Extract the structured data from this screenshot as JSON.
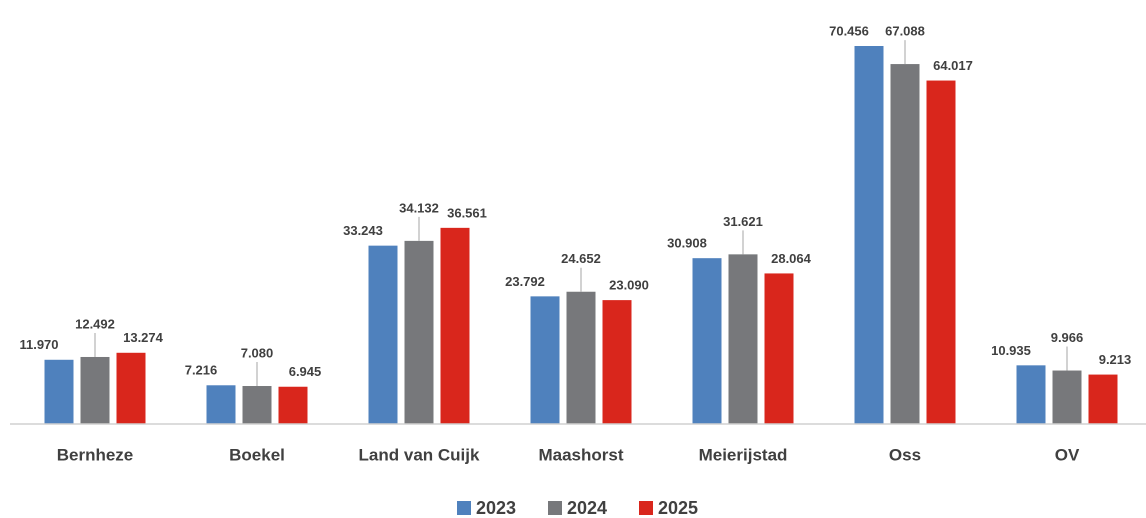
{
  "chart_data": {
    "type": "bar",
    "categories": [
      "Bernheze",
      "Boekel",
      "Land van Cuijk",
      "Maashorst",
      "Meierijstad",
      "Oss",
      "OV"
    ],
    "series": [
      {
        "name": "2023",
        "color": "#4f81bd",
        "values": [
          11970,
          7216,
          33243,
          23792,
          30908,
          70456,
          10935
        ],
        "value_labels": [
          "11.970",
          "7.216",
          "33.243",
          "23.792",
          "30.908",
          "70.456",
          "10.935"
        ]
      },
      {
        "name": "2024",
        "color": "#77787b",
        "values": [
          12492,
          7080,
          34132,
          24652,
          31621,
          67088,
          9966
        ],
        "value_labels": [
          "12.492",
          "7.080",
          "34.132",
          "24.652",
          "31.621",
          "67.088",
          "9.966"
        ]
      },
      {
        "name": "2025",
        "color": "#d9261c",
        "values": [
          13274,
          6945,
          36561,
          23090,
          28064,
          64017,
          9213
        ],
        "value_labels": [
          "13.274",
          "6.945",
          "36.561",
          "23.090",
          "28.064",
          "64.017",
          "9.213"
        ]
      }
    ],
    "legend": "bottom"
  }
}
